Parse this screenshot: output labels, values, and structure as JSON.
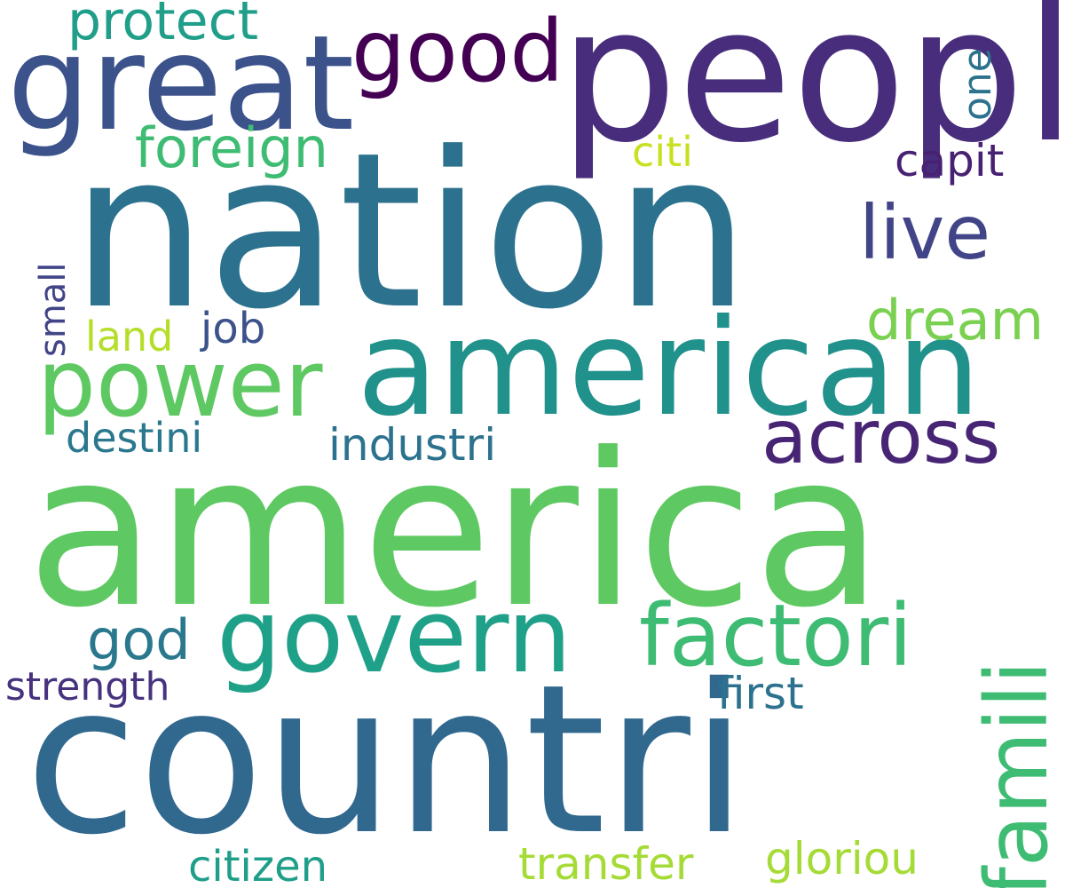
{
  "words": {
    "america": {
      "text": "america",
      "color": "#5ec962"
    },
    "nation": {
      "text": "nation",
      "color": "#2c728e"
    },
    "countri": {
      "text": "countri",
      "color": "#31688e"
    },
    "peopl": {
      "text": "peopl",
      "color": "#472d7b"
    },
    "american": {
      "text": "american",
      "color": "#21918c"
    },
    "great": {
      "text": "great",
      "color": "#3b528b"
    },
    "govern": {
      "text": "govern",
      "color": "#1fa088"
    },
    "good": {
      "text": "good",
      "color": "#440154"
    },
    "power": {
      "text": "power",
      "color": "#5ec962"
    },
    "factori": {
      "text": "factori",
      "color": "#3fbc73"
    },
    "famili": {
      "text": "famili",
      "color": "#3fbc73"
    },
    "across": {
      "text": "across",
      "color": "#482475"
    },
    "live": {
      "text": "live",
      "color": "#414487"
    },
    "dream": {
      "text": "dream",
      "color": "#7ad151"
    },
    "foreign": {
      "text": "foreign",
      "color": "#3fbc73"
    },
    "protect": {
      "text": "protect",
      "color": "#1f9e89"
    },
    "god": {
      "text": "god",
      "color": "#2a788e"
    },
    "industri": {
      "text": "industri",
      "color": "#2c728e"
    },
    "destini": {
      "text": "destini",
      "color": "#2a788e"
    },
    "capit": {
      "text": "capit",
      "color": "#482173"
    },
    "citizen": {
      "text": "citizen",
      "color": "#1f9e89"
    },
    "transfer": {
      "text": "transfer",
      "color": "#a5db36"
    },
    "gloriou": {
      "text": "gloriou",
      "color": "#a5db36"
    },
    "strength": {
      "text": "strength",
      "color": "#46327e"
    },
    "first": {
      "text": "first",
      "color": "#2c728e"
    },
    "job": {
      "text": "job",
      "color": "#3b528b"
    },
    "land": {
      "text": "land",
      "color": "#b5de2b"
    },
    "citi": {
      "text": "citi",
      "color": "#c8e020"
    },
    "one": {
      "text": "one",
      "color": "#2c728e"
    },
    "small": {
      "text": "small",
      "color": "#414487"
    }
  }
}
